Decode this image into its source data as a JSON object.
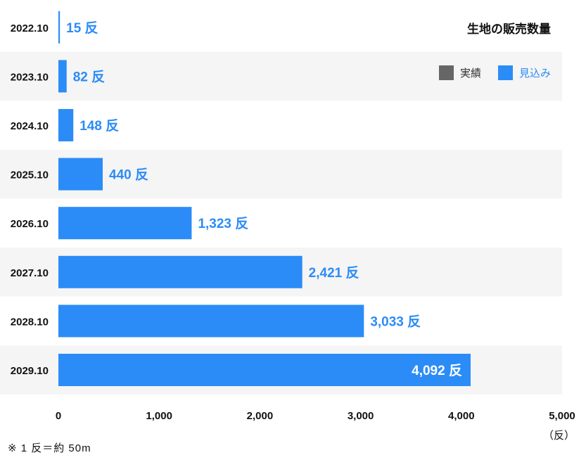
{
  "chart_data": {
    "type": "bar",
    "orientation": "horizontal",
    "title": "生地の販売数量",
    "categories": [
      "2022.10",
      "2023.10",
      "2024.10",
      "2025.10",
      "2026.10",
      "2027.10",
      "2028.10",
      "2029.10"
    ],
    "values": [
      15,
      82,
      148,
      440,
      1323,
      2421,
      3033,
      4092
    ],
    "value_labels": [
      "15 反",
      "82 反",
      "148 反",
      "440 反",
      "1,323 反",
      "2,421 反",
      "3,033 反",
      "4,092 反"
    ],
    "xlim": [
      0,
      5000
    ],
    "xticks": [
      "0",
      "1,000",
      "2,000",
      "3,000",
      "4,000",
      "5,000"
    ],
    "xtick_values": [
      0,
      1000,
      2000,
      3000,
      4000,
      5000
    ],
    "unit_label": "（反）",
    "legend": [
      {
        "name": "実績",
        "color": "#666666"
      },
      {
        "name": "見込み",
        "color": "#2b8cf7"
      }
    ],
    "legend_position": "top-right",
    "bar_color": "#2b8cf7",
    "label_color": "#2b8cf7",
    "inside_label_color": "#ffffff",
    "stripe_color": "#f5f5f5"
  },
  "footnote": "※ 1 反＝約 50m"
}
